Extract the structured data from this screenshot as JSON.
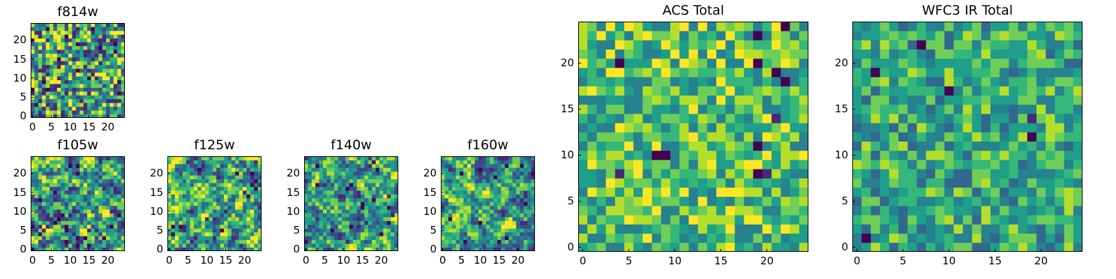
{
  "figure": {
    "palette": [
      "#440154",
      "#482878",
      "#3e4989",
      "#31688e",
      "#26828e",
      "#1f9e89",
      "#35b779",
      "#6ece58",
      "#b5de2b",
      "#fde725"
    ]
  },
  "chart_data": [
    {
      "id": "f814w",
      "type": "heatmap",
      "title": "f814w",
      "size": 25,
      "xticks": [
        "0",
        "5",
        "10",
        "15",
        "20"
      ],
      "yticks": [
        "0",
        "5",
        "10",
        "15",
        "20"
      ],
      "seed": 11,
      "smooth": 0,
      "bias": 0.55,
      "spread": 0.9,
      "outliers": 0.05
    },
    {
      "id": "f105w",
      "type": "heatmap",
      "title": "f105w",
      "size": 25,
      "xticks": [
        "0",
        "5",
        "10",
        "15",
        "20"
      ],
      "yticks": [
        "0",
        "5",
        "10",
        "15",
        "20"
      ],
      "seed": 23,
      "smooth": 1,
      "bias": 0.55,
      "spread": 1.0,
      "outliers": 0.03
    },
    {
      "id": "f125w",
      "type": "heatmap",
      "title": "f125w",
      "size": 25,
      "xticks": [
        "0",
        "5",
        "10",
        "15",
        "20"
      ],
      "yticks": [
        "0",
        "5",
        "10",
        "15",
        "20"
      ],
      "seed": 37,
      "smooth": 1,
      "bias": 0.57,
      "spread": 1.0,
      "outliers": 0.03
    },
    {
      "id": "f140w",
      "type": "heatmap",
      "title": "f140w",
      "size": 25,
      "xticks": [
        "0",
        "5",
        "10",
        "15",
        "20"
      ],
      "yticks": [
        "0",
        "5",
        "10",
        "15",
        "20"
      ],
      "seed": 41,
      "smooth": 1,
      "bias": 0.57,
      "spread": 1.0,
      "outliers": 0.03
    },
    {
      "id": "f160w",
      "type": "heatmap",
      "title": "f160w",
      "size": 25,
      "xticks": [
        "0",
        "5",
        "10",
        "15",
        "20"
      ],
      "yticks": [
        "0",
        "5",
        "10",
        "15",
        "20"
      ],
      "seed": 53,
      "smooth": 1,
      "bias": 0.57,
      "spread": 1.0,
      "outliers": 0.03
    },
    {
      "id": "acs",
      "type": "heatmap",
      "title": "ACS Total",
      "size": 25,
      "xticks": [
        "0",
        "5",
        "10",
        "15",
        "20"
      ],
      "yticks": [
        "0",
        "5",
        "10",
        "15",
        "20"
      ],
      "seed": 67,
      "smooth": 0,
      "bias": 0.68,
      "spread": 0.55,
      "outliers": 0.02
    },
    {
      "id": "wfc3",
      "type": "heatmap",
      "title": "WFC3 IR Total",
      "size": 25,
      "xticks": [
        "0",
        "5",
        "10",
        "15",
        "20"
      ],
      "yticks": [
        "0",
        "5",
        "10",
        "15",
        "20"
      ],
      "seed": 79,
      "smooth": 0,
      "bias": 0.6,
      "spread": 0.5,
      "outliers": 0.02
    }
  ]
}
